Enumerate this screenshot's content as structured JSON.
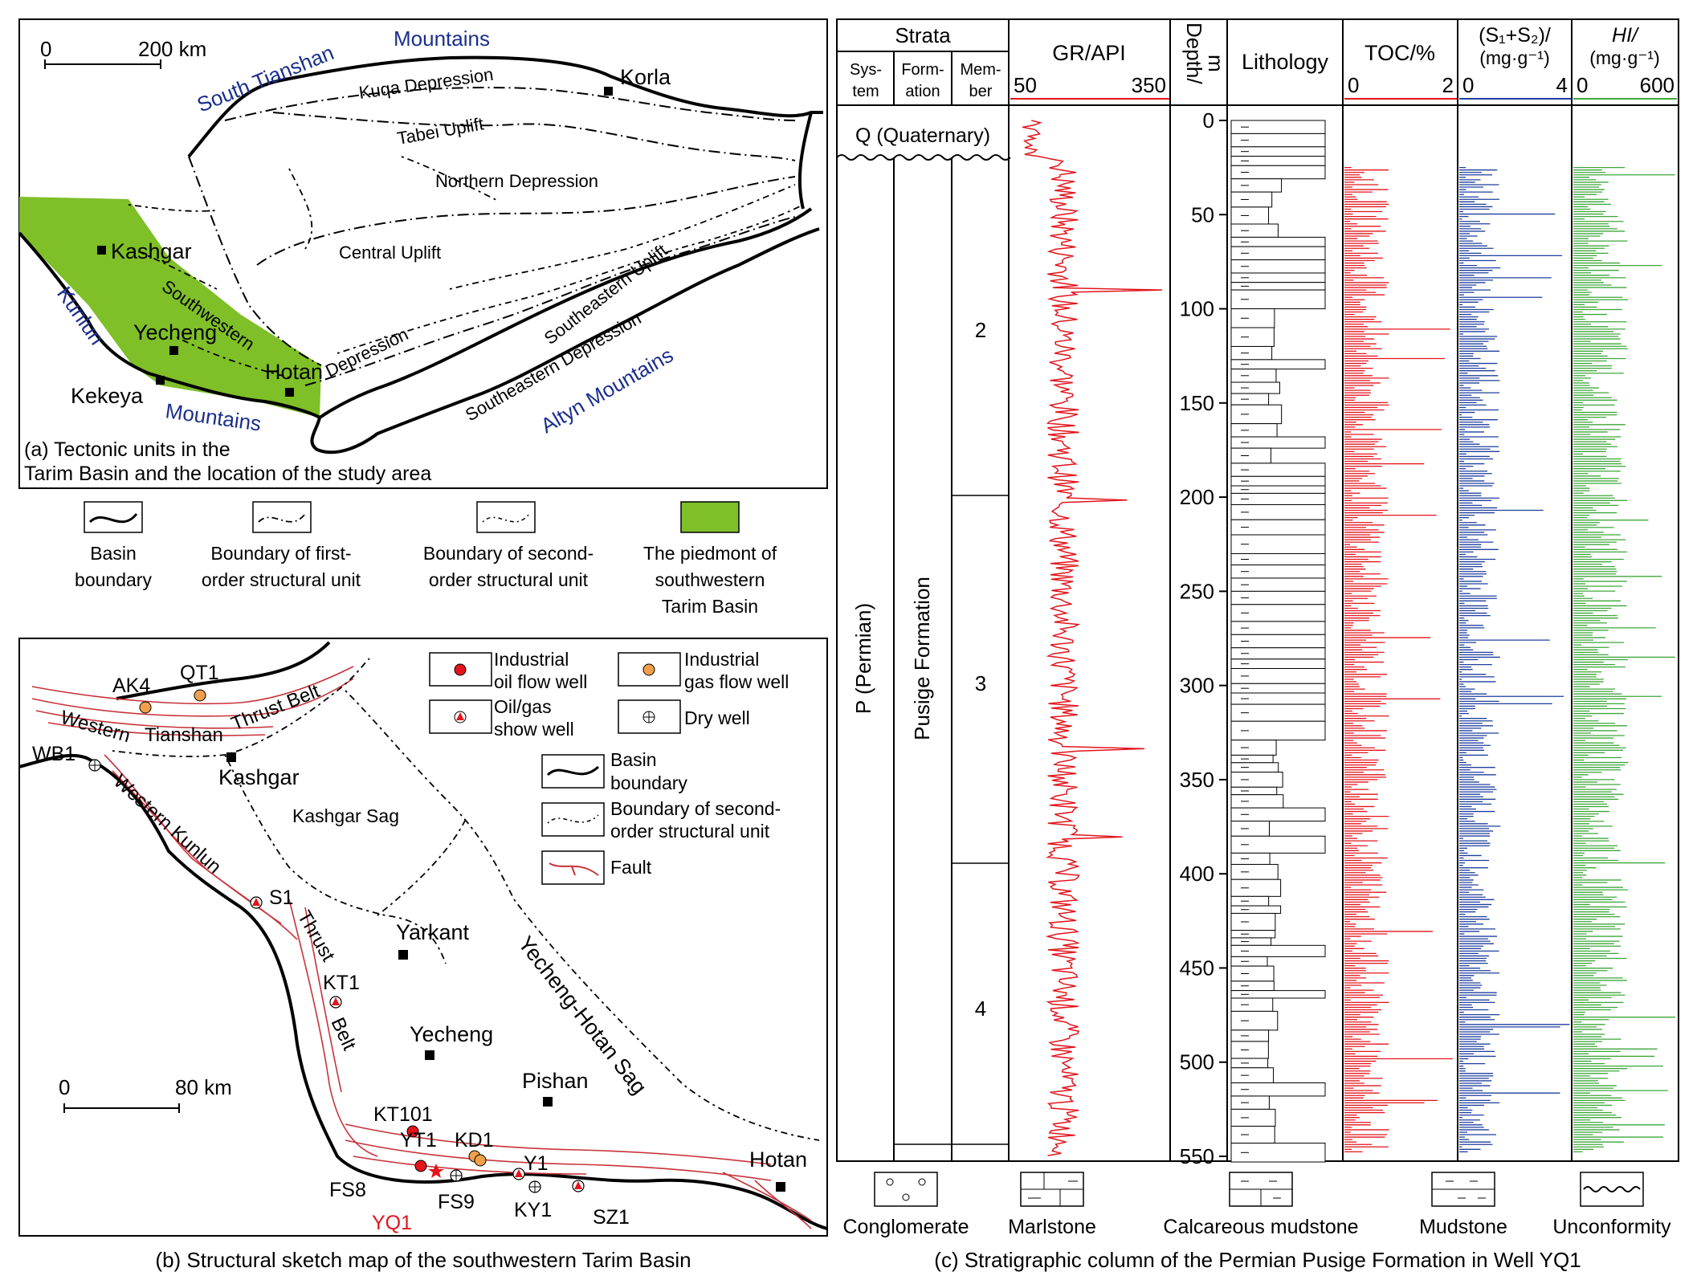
{
  "panel_a": {
    "scale_zero": "0",
    "scale_label": "200 km",
    "mountains": [
      "Mountains",
      "South Tianshan",
      "Kunlun",
      "Mountains",
      "Altyn Mountains"
    ],
    "cities": [
      "Korla",
      "Kashgar",
      "Yecheng",
      "Hotan",
      "Kekeya"
    ],
    "units": [
      "Kuqa Depression",
      "Tabei Uplift",
      "Northern Depression",
      "Central Uplift",
      "Southwestern",
      "Depression",
      "Southeastern Uplift",
      "Southeastern Depression"
    ],
    "caption_line1": "(a) Tectonic units in the",
    "caption_line2": "Tarim Basin and the location of the study area",
    "legend": [
      {
        "line1": "Basin",
        "line2": "boundary",
        "line3": ""
      },
      {
        "line1": "Boundary of first-",
        "line2": "order structural unit",
        "line3": ""
      },
      {
        "line1": "Boundary of second-",
        "line2": "order structural unit",
        "line3": ""
      },
      {
        "line1": "The piedmont of",
        "line2": "southwestern",
        "line3": "Tarim Basin"
      }
    ]
  },
  "panel_b": {
    "scale_zero": "0",
    "scale_label": "80 km",
    "wells": [
      "AK4",
      "QT1",
      "WB1",
      "S1",
      "KT1",
      "KT101",
      "YT1",
      "KD1",
      "Y1",
      "FS8",
      "FS9",
      "KY1",
      "SZ1",
      "YQ1"
    ],
    "cities": [
      "Kashgar",
      "Yarkant",
      "Yecheng",
      "Pishan",
      "Hotan"
    ],
    "units": [
      "Western",
      "Tianshan",
      "Thrust Belt",
      "Western Kunlun",
      "Thrust",
      "Belt",
      "Kashgar Sag",
      "Yecheng-Hotan Sag"
    ],
    "legend": {
      "oil_l1": "Industrial",
      "oil_l2": "oil flow well",
      "gas_l1": "Industrial",
      "gas_l2": "gas flow well",
      "show_l1": "Oil/gas",
      "show_l2": "show well",
      "dry": "Dry well",
      "basin_l1": "Basin",
      "basin_l2": "boundary",
      "second_l1": "Boundary of second-",
      "second_l2": "order structural unit",
      "fault": "Fault"
    },
    "caption": "(b) Structural sketch map of the southwestern Tarim Basin"
  },
  "panel_c": {
    "strata_header": "Strata",
    "system_header_l1": "Sys-",
    "system_header_l2": "tem",
    "formation_header_l1": "Form-",
    "formation_header_l2": "ation",
    "member_header_l1": "Mem-",
    "member_header_l2": "ber",
    "gr_header": "GR/API",
    "gr_min": "50",
    "gr_max": "350",
    "depth_header_l1": "Depth/",
    "depth_header_l2": "m",
    "lithology_header": "Lithology",
    "toc_header": "TOC/%",
    "toc_min": "0",
    "toc_max": "2",
    "s_header_l1": "(S₁+S₂)/",
    "s_header_l2": "(mg·g⁻¹)",
    "s_min": "0",
    "s_max": "4",
    "hi_header_l1": "HI/",
    "hi_header_l2": "(mg·g⁻¹)",
    "hi_min": "0",
    "hi_max": "600",
    "quaternary": "Q (Quaternary)",
    "system": "P (Permian)",
    "formation": "Pusige Formation",
    "members": [
      "2",
      "3",
      "4"
    ],
    "depth_ticks": [
      "0",
      "50",
      "100",
      "150",
      "200",
      "250",
      "300",
      "350",
      "400",
      "450",
      "500",
      "550"
    ],
    "legend": [
      "Conglomerate",
      "Marlstone",
      "Calcareous mudstone",
      "Mudstone",
      "Unconformity"
    ],
    "caption": "(c) Stratigraphic column of the Permian Pusige Formation in Well YQ1",
    "colors": {
      "gr": "#e3141c",
      "toc": "#e3141c",
      "s": "#1e3e9c",
      "hi": "#3ea63a",
      "piedmont": "#7fbf28",
      "label_blue": "#1a2f8c"
    }
  }
}
